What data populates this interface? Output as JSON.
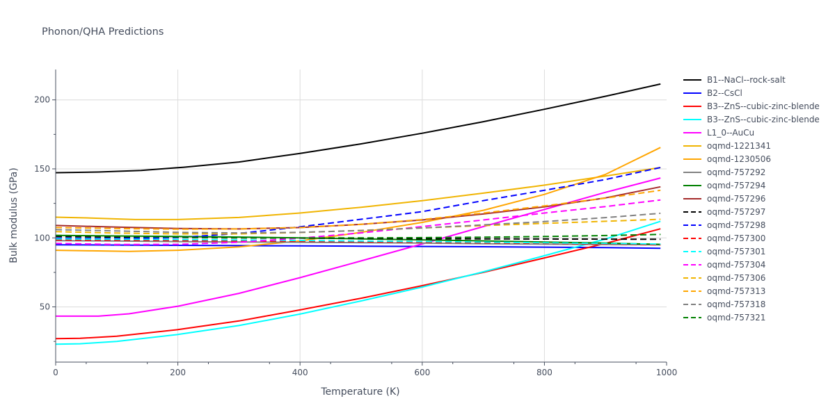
{
  "chart_data": {
    "type": "line",
    "title": "Phonon/QHA Predictions",
    "xlabel": "Temperature (K)",
    "ylabel": "Bulk modulus (GPa)",
    "xlim": [
      0,
      1000
    ],
    "ylim": [
      10,
      222
    ],
    "x_ticks": [
      "0",
      "200",
      "400",
      "600",
      "800",
      "1000"
    ],
    "y_ticks": [
      "50",
      "100",
      "150",
      "200"
    ],
    "grid": true,
    "legend_position": "right",
    "series": [
      {
        "name": "B1--NaCl--rock-salt",
        "color": "#000000",
        "dash": "solid",
        "points": [
          [
            0,
            147.2
          ],
          [
            70,
            147.7
          ],
          [
            140,
            148.9
          ],
          [
            210,
            151.2
          ],
          [
            300,
            155.0
          ],
          [
            400,
            161.2
          ],
          [
            500,
            168.1
          ],
          [
            600,
            175.8
          ],
          [
            700,
            184.2
          ],
          [
            800,
            193.2
          ],
          [
            900,
            202.6
          ],
          [
            990,
            211.5
          ]
        ]
      },
      {
        "name": "B2--CsCl",
        "color": "#0000ff",
        "dash": "solid",
        "points": [
          [
            0,
            95.0
          ],
          [
            100,
            94.8
          ],
          [
            200,
            94.6
          ],
          [
            300,
            94.4
          ],
          [
            400,
            94.2
          ],
          [
            500,
            94.0
          ],
          [
            600,
            93.8
          ],
          [
            700,
            93.6
          ],
          [
            800,
            93.3
          ],
          [
            900,
            93.0
          ],
          [
            990,
            92.5
          ]
        ]
      },
      {
        "name": "B3--ZnS--cubic-zinc-blende",
        "color": "#ff0000",
        "dash": "solid",
        "points": [
          [
            0,
            27.0
          ],
          [
            40,
            27.2
          ],
          [
            100,
            28.8
          ],
          [
            200,
            33.5
          ],
          [
            300,
            39.8
          ],
          [
            400,
            47.8
          ],
          [
            500,
            56.3
          ],
          [
            600,
            65.4
          ],
          [
            700,
            75.0
          ],
          [
            800,
            85.5
          ],
          [
            900,
            96.0
          ],
          [
            990,
            106.6
          ]
        ]
      },
      {
        "name": "B3--ZnS--cubic-zinc-blende",
        "color": "#00ffff",
        "dash": "solid",
        "points": [
          [
            0,
            23.0
          ],
          [
            40,
            23.3
          ],
          [
            100,
            25.0
          ],
          [
            200,
            30.0
          ],
          [
            300,
            36.5
          ],
          [
            400,
            44.8
          ],
          [
            500,
            54.3
          ],
          [
            600,
            64.4
          ],
          [
            700,
            75.4
          ],
          [
            800,
            87.1
          ],
          [
            900,
            99.2
          ],
          [
            990,
            112.0
          ]
        ]
      },
      {
        "name": "L1_0--AuCu",
        "color": "#ff00ff",
        "dash": "solid",
        "points": [
          [
            0,
            43.3
          ],
          [
            70,
            43.3
          ],
          [
            120,
            45.0
          ],
          [
            200,
            50.5
          ],
          [
            300,
            59.8
          ],
          [
            400,
            71.2
          ],
          [
            500,
            83.3
          ],
          [
            600,
            95.6
          ],
          [
            700,
            108.2
          ],
          [
            800,
            120.6
          ],
          [
            900,
            133.0
          ],
          [
            990,
            143.4
          ]
        ]
      },
      {
        "name": "oqmd-1221341",
        "color": "#f0b400",
        "dash": "solid",
        "points": [
          [
            0,
            115.0
          ],
          [
            50,
            114.5
          ],
          [
            130,
            113.3
          ],
          [
            200,
            113.3
          ],
          [
            300,
            114.8
          ],
          [
            400,
            118.0
          ],
          [
            500,
            122.2
          ],
          [
            600,
            127.0
          ],
          [
            700,
            132.4
          ],
          [
            800,
            138.2
          ],
          [
            900,
            144.8
          ],
          [
            990,
            151.0
          ]
        ]
      },
      {
        "name": "oqmd-1230506",
        "color": "#ffa500",
        "dash": "solid",
        "points": [
          [
            0,
            91.0
          ],
          [
            60,
            90.6
          ],
          [
            120,
            90.2
          ],
          [
            200,
            91.0
          ],
          [
            300,
            93.5
          ],
          [
            400,
            97.8
          ],
          [
            500,
            104.0
          ],
          [
            600,
            111.2
          ],
          [
            700,
            120.0
          ],
          [
            800,
            131.5
          ],
          [
            900,
            146.0
          ],
          [
            990,
            165.5
          ]
        ]
      },
      {
        "name": "oqmd-757292",
        "color": "#808080",
        "dash": "solid",
        "points": [
          [
            0,
            98.0
          ],
          [
            100,
            97.7
          ],
          [
            200,
            97.3
          ],
          [
            300,
            97.0
          ],
          [
            400,
            96.8
          ],
          [
            500,
            96.5
          ],
          [
            600,
            96.2
          ],
          [
            700,
            95.8
          ],
          [
            800,
            95.5
          ],
          [
            900,
            95.2
          ],
          [
            990,
            95.0
          ]
        ]
      },
      {
        "name": "oqmd-757294",
        "color": "#008000",
        "dash": "solid",
        "points": [
          [
            0,
            101.8
          ],
          [
            100,
            101.4
          ],
          [
            200,
            101.0
          ],
          [
            300,
            100.6
          ],
          [
            400,
            100.0
          ],
          [
            500,
            99.3
          ],
          [
            600,
            98.6
          ],
          [
            700,
            97.8
          ],
          [
            800,
            97.0
          ],
          [
            900,
            96.2
          ],
          [
            990,
            95.3
          ]
        ]
      },
      {
        "name": "oqmd-757296",
        "color": "#a52a2a",
        "dash": "solid",
        "points": [
          [
            0,
            109.0
          ],
          [
            100,
            107.8
          ],
          [
            200,
            106.8
          ],
          [
            300,
            106.5
          ],
          [
            400,
            107.5
          ],
          [
            500,
            109.8
          ],
          [
            600,
            113.0
          ],
          [
            700,
            117.3
          ],
          [
            800,
            122.5
          ],
          [
            900,
            129.0
          ],
          [
            990,
            137.0
          ]
        ]
      },
      {
        "name": "oqmd-757297",
        "color": "#000000",
        "dash": "dash",
        "points": [
          [
            0,
            101.0
          ],
          [
            100,
            100.6
          ],
          [
            200,
            100.3
          ],
          [
            300,
            100.0
          ],
          [
            400,
            99.8
          ],
          [
            500,
            99.6
          ],
          [
            600,
            99.4
          ],
          [
            700,
            99.3
          ],
          [
            800,
            99.2
          ],
          [
            900,
            99.1
          ],
          [
            990,
            99.0
          ]
        ]
      },
      {
        "name": "oqmd-757298",
        "color": "#0000ff",
        "dash": "dash",
        "points": [
          [
            0,
            99.8
          ],
          [
            100,
            99.5
          ],
          [
            200,
            100.2
          ],
          [
            300,
            103.2
          ],
          [
            400,
            108.0
          ],
          [
            500,
            113.5
          ],
          [
            600,
            119.0
          ],
          [
            700,
            127.0
          ],
          [
            800,
            134.5
          ],
          [
            900,
            142.3
          ],
          [
            990,
            151.0
          ]
        ]
      },
      {
        "name": "oqmd-757300",
        "color": "#ff0000",
        "dash": "dash",
        "points": [
          [
            0,
            98.6
          ],
          [
            100,
            98.3
          ],
          [
            200,
            98.0
          ],
          [
            300,
            97.8
          ],
          [
            400,
            97.5
          ],
          [
            500,
            97.2
          ],
          [
            600,
            96.8
          ],
          [
            700,
            96.4
          ],
          [
            800,
            96.0
          ],
          [
            900,
            95.5
          ],
          [
            990,
            95.0
          ]
        ]
      },
      {
        "name": "oqmd-757301",
        "color": "#00ffff",
        "dash": "dash",
        "points": [
          [
            0,
            99.3
          ],
          [
            100,
            99.0
          ],
          [
            200,
            98.8
          ],
          [
            300,
            98.5
          ],
          [
            400,
            98.1
          ],
          [
            500,
            97.7
          ],
          [
            600,
            97.3
          ],
          [
            700,
            96.9
          ],
          [
            800,
            96.4
          ],
          [
            900,
            95.9
          ],
          [
            990,
            95.5
          ]
        ]
      },
      {
        "name": "oqmd-757304",
        "color": "#ff00ff",
        "dash": "dash",
        "points": [
          [
            0,
            96.0
          ],
          [
            100,
            95.2
          ],
          [
            200,
            95.3
          ],
          [
            300,
            96.8
          ],
          [
            400,
            99.8
          ],
          [
            500,
            103.6
          ],
          [
            600,
            108.2
          ],
          [
            700,
            113.0
          ],
          [
            800,
            118.0
          ],
          [
            900,
            122.7
          ],
          [
            990,
            127.5
          ]
        ]
      },
      {
        "name": "oqmd-757306",
        "color": "#f0b400",
        "dash": "dash",
        "points": [
          [
            0,
            104.5
          ],
          [
            100,
            103.5
          ],
          [
            200,
            102.9
          ],
          [
            300,
            102.9
          ],
          [
            400,
            103.9
          ],
          [
            500,
            105.4
          ],
          [
            600,
            107.2
          ],
          [
            700,
            108.9
          ],
          [
            800,
            110.5
          ],
          [
            900,
            112.0
          ],
          [
            990,
            113.5
          ]
        ]
      },
      {
        "name": "oqmd-757313",
        "color": "#ffa500",
        "dash": "dash",
        "points": [
          [
            0,
            107.5
          ],
          [
            100,
            106.8
          ],
          [
            200,
            106.3
          ],
          [
            300,
            106.5
          ],
          [
            400,
            107.5
          ],
          [
            500,
            109.8
          ],
          [
            600,
            113.3
          ],
          [
            700,
            118.0
          ],
          [
            800,
            123.2
          ],
          [
            900,
            128.8
          ],
          [
            990,
            134.5
          ]
        ]
      },
      {
        "name": "oqmd-757318",
        "color": "#808080",
        "dash": "dash",
        "points": [
          [
            0,
            106.0
          ],
          [
            100,
            105.0
          ],
          [
            200,
            104.0
          ],
          [
            300,
            103.6
          ],
          [
            400,
            104.0
          ],
          [
            500,
            105.3
          ],
          [
            600,
            107.2
          ],
          [
            700,
            109.4
          ],
          [
            800,
            111.8
          ],
          [
            900,
            114.7
          ],
          [
            990,
            117.8
          ]
        ]
      },
      {
        "name": "oqmd-757321",
        "color": "#008000",
        "dash": "dash",
        "points": [
          [
            0,
            101.8
          ],
          [
            100,
            101.2
          ],
          [
            200,
            100.6
          ],
          [
            300,
            100.2
          ],
          [
            400,
            100.0
          ],
          [
            500,
            100.0
          ],
          [
            600,
            100.2
          ],
          [
            700,
            100.5
          ],
          [
            800,
            101.0
          ],
          [
            900,
            101.7
          ],
          [
            990,
            102.5
          ]
        ]
      }
    ]
  }
}
